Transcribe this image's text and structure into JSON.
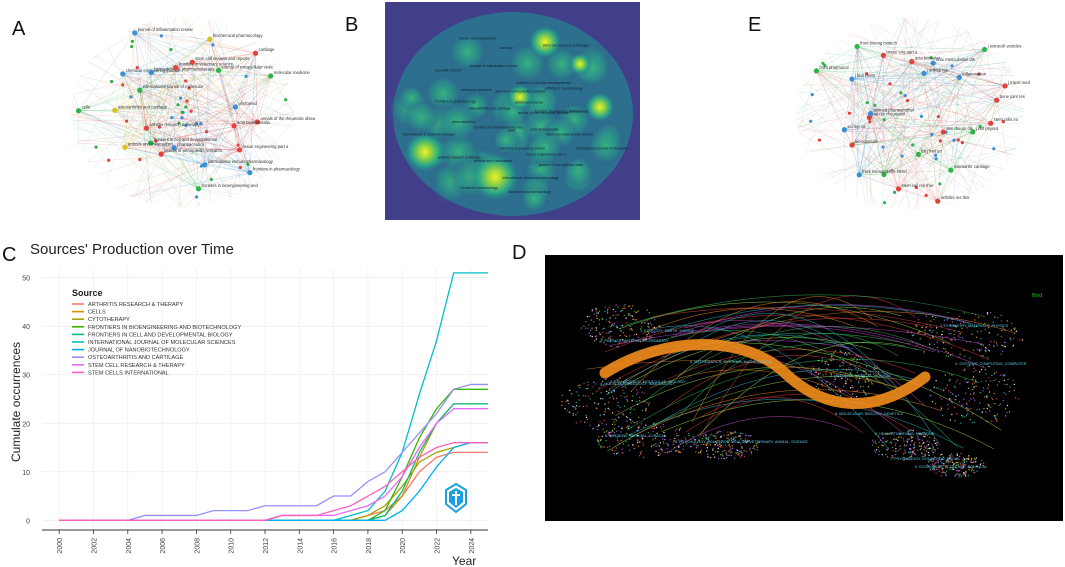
{
  "labels": {
    "A": "A",
    "B": "B",
    "C": "C",
    "D": "D",
    "E": "E"
  },
  "panelA": {
    "nodes": [
      {
        "label": "annals of the rheumatic diseases",
        "c": "#e2413c"
      },
      {
        "label": "acta biomaterialia",
        "c": "#e2413c"
      },
      {
        "label": "tissue engineering part a",
        "c": "#e2413c"
      },
      {
        "label": "frontiers in pharmacology",
        "c": "#3a8fd6"
      },
      {
        "label": "international immunopharmacology",
        "c": "#3a8fd6"
      },
      {
        "label": "frontiers in bioengineering and",
        "c": "#2fb24a"
      },
      {
        "label": "pharmaceutics",
        "c": "#3a8fd6"
      },
      {
        "label": "journal of orthopaedic research",
        "c": "#e2413c"
      },
      {
        "label": "frontiers in cell and developmental",
        "c": "#2fb24a"
      },
      {
        "label": "arthritis and rheumatism",
        "c": "#d4c21f"
      },
      {
        "label": "arthritis research & therapy",
        "c": "#e2413c"
      },
      {
        "label": "cells",
        "c": "#2fb24a"
      },
      {
        "label": "osteoarthritis and cartilage",
        "c": "#d4c21f"
      },
      {
        "label": "international journal of molecular",
        "c": "#2fb24a"
      },
      {
        "label": "chemical engineering journal",
        "c": "#3a8fd6"
      },
      {
        "label": "biomedicine & pharmacotherapy",
        "c": "#3a8fd6"
      },
      {
        "label": "journal of inflammation resear",
        "c": "#3a8fd6"
      },
      {
        "label": "frontiers in veterinary science",
        "c": "#e2413c"
      },
      {
        "label": "stem cell reviews and reports",
        "c": "#e2413c"
      },
      {
        "label": "biochemical pharmacology",
        "c": "#d4c21f"
      },
      {
        "label": "journal of extracellular vesic",
        "c": "#2fb24a"
      },
      {
        "label": "cartilage",
        "c": "#e2413c"
      },
      {
        "label": "molecular medicine",
        "c": "#2fb24a"
      },
      {
        "label": "phytomed",
        "c": "#3a8fd6"
      }
    ]
  },
  "panelB": {
    "terms": [
      "annals of the rheumatic disease",
      "acta biomaterialia",
      "tissue engineering part a",
      "international immunopharmacology",
      "frontiers in immunology",
      "frontiers in bioengineering and",
      "pharmaceutics",
      "frontiers in pharmacology",
      "scientific reports",
      "nature communications",
      "journal of orthopaedic research",
      "frontiers in cell and developmental",
      "arthritis & rheumatology",
      "biomaterials",
      "international journal of molecular",
      "cells",
      "chemical engineering journal",
      "arthritis and rheumatism",
      "arthritis research & therapy",
      "biomedicine & pharmacotherapy",
      "osteoarthritis and cartilage",
      "molecular medicine",
      "journal of inflammation resear",
      "cartilage",
      "stem cell research & therapy",
      "advanced science",
      "frontiers in veterinary science",
      "stem cell reviews and reports",
      "journal of extracellular vesic",
      "biochemical pharmacology"
    ]
  },
  "panelE": {
    "nodes": [
      {
        "label": "stem cells int",
        "c": "#e2413c"
      },
      {
        "label": "j cell physiol",
        "c": "#2fb24a"
      },
      {
        "label": "ann rheum dis",
        "c": "#e2413c"
      },
      {
        "label": "osteoarthr cartilage",
        "c": "#2fb24a"
      },
      {
        "label": "arthritis res ther",
        "c": "#e2413c"
      },
      {
        "label": "int j mol sci",
        "c": "#2fb24a"
      },
      {
        "label": "stem cell res ther",
        "c": "#e2413c"
      },
      {
        "label": "cells-basel",
        "c": "#2fb24a"
      },
      {
        "label": "front immunol",
        "c": "#3a8fd6"
      },
      {
        "label": "biomaterials",
        "c": "#e2413c"
      },
      {
        "label": "sci rep-uk",
        "c": "#3a8fd6"
      },
      {
        "label": "nat rev rheumatol",
        "c": "#e2413c"
      },
      {
        "label": "biomed pharmacother",
        "c": "#3a8fd6"
      },
      {
        "label": "front pharmacol",
        "c": "#2fb24a"
      },
      {
        "label": "j biol chem",
        "c": "#3a8fd6"
      },
      {
        "label": "front bioeng biotech",
        "c": "#2fb24a"
      },
      {
        "label": "tissue eng part a",
        "c": "#e2413c"
      },
      {
        "label": "acta biomater",
        "c": "#e2413c"
      },
      {
        "label": "j orthop res",
        "c": "#3a8fd6"
      },
      {
        "label": "bmc musculoskel dis",
        "c": "#3a8fd6"
      },
      {
        "label": "j extracell vesicles",
        "c": "#2fb24a"
      },
      {
        "label": "inflammation",
        "c": "#3a8fd6"
      },
      {
        "label": "j transl med",
        "c": "#e2413c"
      },
      {
        "label": "bone joint res",
        "c": "#e2413c"
      }
    ]
  },
  "chart_data": {
    "type": "line",
    "title": "Sources' Production over Time",
    "xlabel": "Year",
    "ylabel": "Cumulate occurrences",
    "xlim": [
      1999,
      2025
    ],
    "ylim": [
      -2,
      52
    ],
    "xticks": [
      2000,
      2002,
      2004,
      2006,
      2008,
      2010,
      2012,
      2014,
      2016,
      2018,
      2020,
      2022,
      2024
    ],
    "yticks": [
      0,
      10,
      20,
      30,
      40,
      50
    ],
    "legend_title": "Source",
    "legend_position": "top-left",
    "x": [
      2000,
      2001,
      2002,
      2003,
      2004,
      2005,
      2006,
      2007,
      2008,
      2009,
      2010,
      2011,
      2012,
      2013,
      2014,
      2015,
      2016,
      2017,
      2018,
      2019,
      2020,
      2021,
      2022,
      2023,
      2024,
      2025
    ],
    "series": [
      {
        "name": "ARTHRITIS RESEARCH & THERAPY",
        "color": "#F8766D",
        "values": [
          0,
          0,
          0,
          0,
          0,
          0,
          0,
          0,
          0,
          0,
          0,
          0,
          0,
          0,
          0,
          0,
          0,
          0,
          1,
          2,
          5,
          10,
          13,
          14,
          14,
          14
        ]
      },
      {
        "name": "CELLS",
        "color": "#D89000",
        "values": [
          0,
          0,
          0,
          0,
          0,
          0,
          0,
          0,
          0,
          0,
          0,
          0,
          0,
          0,
          0,
          0,
          0,
          0,
          0,
          1,
          5,
          13,
          20,
          24,
          24,
          24
        ]
      },
      {
        "name": "CYTOTHERAPY",
        "color": "#A3A500",
        "values": [
          0,
          0,
          0,
          0,
          0,
          0,
          0,
          0,
          0,
          0,
          0,
          0,
          0,
          0,
          0,
          0,
          0,
          0,
          1,
          3,
          7,
          12,
          14,
          15,
          16,
          16
        ]
      },
      {
        "name": "FRONTIERS IN BIOENGINEERING AND BIOTECHNOLOGY",
        "color": "#39B600",
        "values": [
          0,
          0,
          0,
          0,
          0,
          0,
          0,
          0,
          0,
          0,
          0,
          0,
          0,
          0,
          0,
          0,
          0,
          0,
          0,
          2,
          9,
          17,
          23,
          27,
          27,
          27
        ]
      },
      {
        "name": "FRONTIERS IN CELL AND DEVELOPMENTAL BIOLOGY",
        "color": "#00BF7D",
        "values": [
          0,
          0,
          0,
          0,
          0,
          0,
          0,
          0,
          0,
          0,
          0,
          0,
          0,
          0,
          0,
          0,
          0,
          0,
          0,
          1,
          6,
          14,
          20,
          24,
          24,
          24
        ]
      },
      {
        "name": "INTERNATIONAL JOURNAL OF MOLECULAR SCIENCES",
        "color": "#00BFC4",
        "values": [
          0,
          0,
          0,
          0,
          0,
          0,
          0,
          0,
          0,
          0,
          0,
          0,
          0,
          0,
          0,
          0,
          0,
          1,
          2,
          6,
          14,
          26,
          37,
          51,
          51,
          51
        ]
      },
      {
        "name": "JOURNAL OF NANOBIOTECHNOLOGY",
        "color": "#00B0F6",
        "values": [
          0,
          0,
          0,
          0,
          0,
          0,
          0,
          0,
          0,
          0,
          0,
          0,
          0,
          0,
          0,
          0,
          0,
          0,
          0,
          0,
          2,
          6,
          11,
          15,
          16,
          16
        ]
      },
      {
        "name": "OSTEOARTHRITIS AND CARTILAGE",
        "color": "#9590FF",
        "values": [
          0,
          0,
          0,
          0,
          0,
          1,
          1,
          1,
          1,
          2,
          2,
          2,
          3,
          3,
          3,
          3,
          5,
          5,
          8,
          10,
          14,
          18,
          22,
          27,
          28,
          28
        ]
      },
      {
        "name": "STEM CELL RESEARCH & THERAPY",
        "color": "#E76BF3",
        "values": [
          0,
          0,
          0,
          0,
          0,
          0,
          0,
          0,
          0,
          0,
          0,
          0,
          0,
          1,
          1,
          1,
          1,
          2,
          3,
          5,
          9,
          15,
          20,
          23,
          23,
          23
        ]
      },
      {
        "name": "STEM CELLS INTERNATIONAL",
        "color": "#FF62BC",
        "values": [
          0,
          0,
          0,
          0,
          0,
          0,
          0,
          0,
          0,
          0,
          0,
          0,
          0,
          1,
          1,
          1,
          2,
          3,
          5,
          7,
          10,
          13,
          15,
          16,
          16,
          16
        ]
      }
    ]
  },
  "panelD": {
    "legend_corner": "Blnd",
    "left_clusters": [
      "1. ECOLOGY, EARTH, MARINE",
      "3. PHYSICS, MATERIALS, CHEMISTRY",
      "5. MATHEMATICS, SYSTEMS, MATHEMATICAL",
      "2. ENV. SCIENCE, MOLECULAR, BIOLOGY",
      "4. MOLECULAR, BIOLOGY, IMMUNOLOGY",
      "6. MEDICINE, MEDICAL, CLINICAL",
      "8. PSYCHOLOGY, EDUCATION, HEALTH",
      "9. VETERINARY, ANIMAL, SCIENCE"
    ],
    "right_clusters": [
      "3. CHEMISTRY, MATERIALS, PHYSICS",
      "4. SYSTEMS, COMPUTING, COMPUTER",
      "2. MEDICINE, MEDICAL, CLINICAL",
      "8. MOLECULAR, BIOLOGY, GENETICS",
      "5. HEALTH, NURSING, MEDICINE",
      "7. PSYCHOLOGY, EDUCATION, SOCIAL",
      "6. ECONOMICS, ECONOMIC, POLITICAL"
    ]
  }
}
